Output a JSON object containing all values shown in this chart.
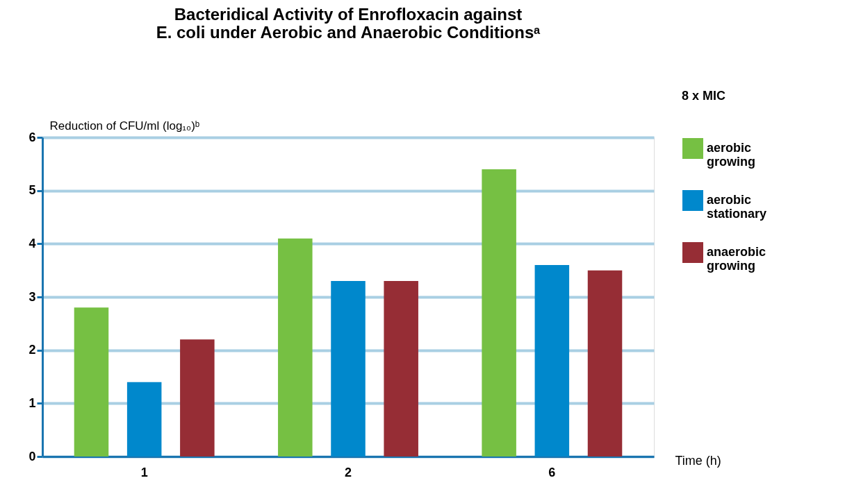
{
  "chart_data": {
    "type": "bar",
    "title": [
      "Bacteridical Activity of Enrofloxacin against",
      "E. coli under Aerobic and Anaerobic Conditionsᵃ"
    ],
    "categories": [
      "1",
      "2",
      "6"
    ],
    "series": [
      {
        "name": "aerobic growing",
        "color": "#76c043",
        "values": [
          2.8,
          4.1,
          5.4
        ]
      },
      {
        "name": "aerobic stationary",
        "color": "#0088cc",
        "values": [
          1.4,
          3.3,
          3.6
        ]
      },
      {
        "name": "anaerobic growing",
        "color": "#962d35",
        "values": [
          2.2,
          3.3,
          3.5
        ]
      }
    ],
    "xlabel": "Time (h)",
    "ylabel": "Reduction of CFU/ml (log₁₀)ᵇ",
    "ylim": [
      0,
      6
    ],
    "yticks": [
      0,
      1,
      2,
      3,
      4,
      5,
      6
    ],
    "grid": "y",
    "legend": "right",
    "annotations": [
      "8 x MIC"
    ]
  }
}
